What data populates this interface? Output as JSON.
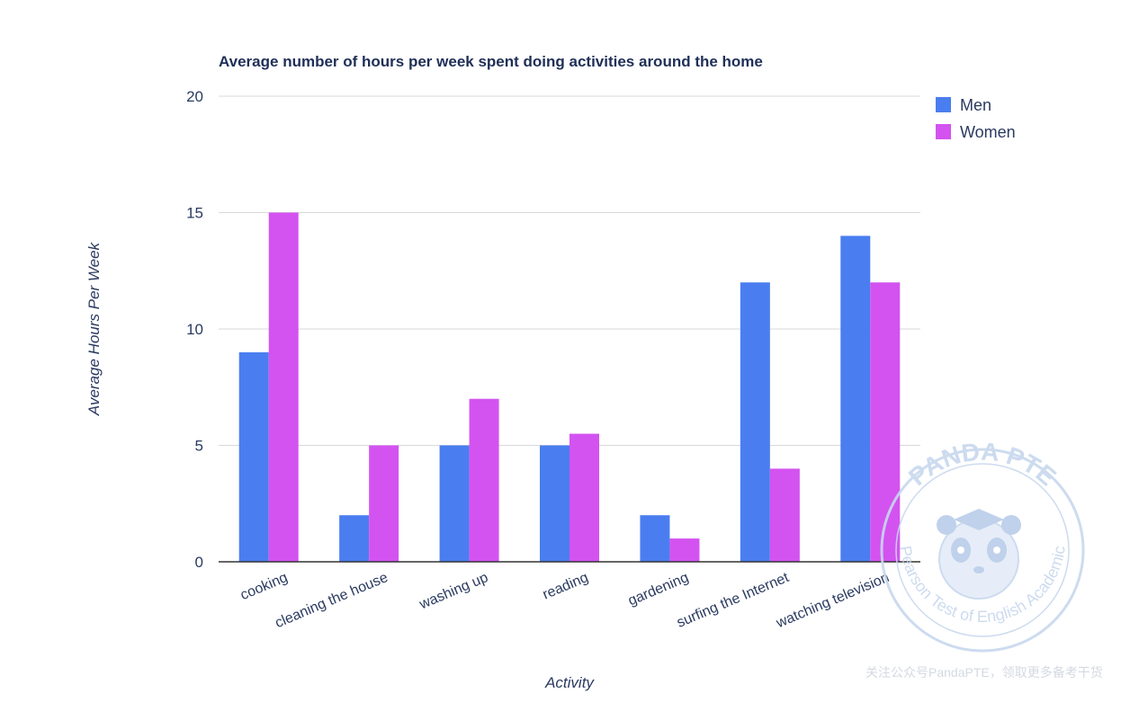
{
  "chart_data": {
    "type": "bar",
    "title": "Average number of hours per week spent doing activities around the home",
    "xlabel": "Activity",
    "ylabel": "Average Hours Per Week",
    "ylim": [
      0,
      20
    ],
    "yticks": [
      0,
      5,
      10,
      15,
      20
    ],
    "grid": true,
    "legend_position": "top-right",
    "categories": [
      "cooking",
      "cleaning the house",
      "washing up",
      "reading",
      "gardening",
      "surfing the Internet",
      "watching television"
    ],
    "series": [
      {
        "name": "Men",
        "color": "#4a7ef0",
        "values": [
          9,
          2,
          5,
          5,
          2,
          12,
          14
        ]
      },
      {
        "name": "Women",
        "color": "#d353f0",
        "values": [
          15,
          5,
          7,
          5.5,
          1,
          4,
          12
        ]
      }
    ]
  },
  "watermark": {
    "brand": "PANDA PTE",
    "tagline": "Pearson Test of English Academic",
    "footer": "关注公众号PandaPTE，领取更多备考干货"
  }
}
